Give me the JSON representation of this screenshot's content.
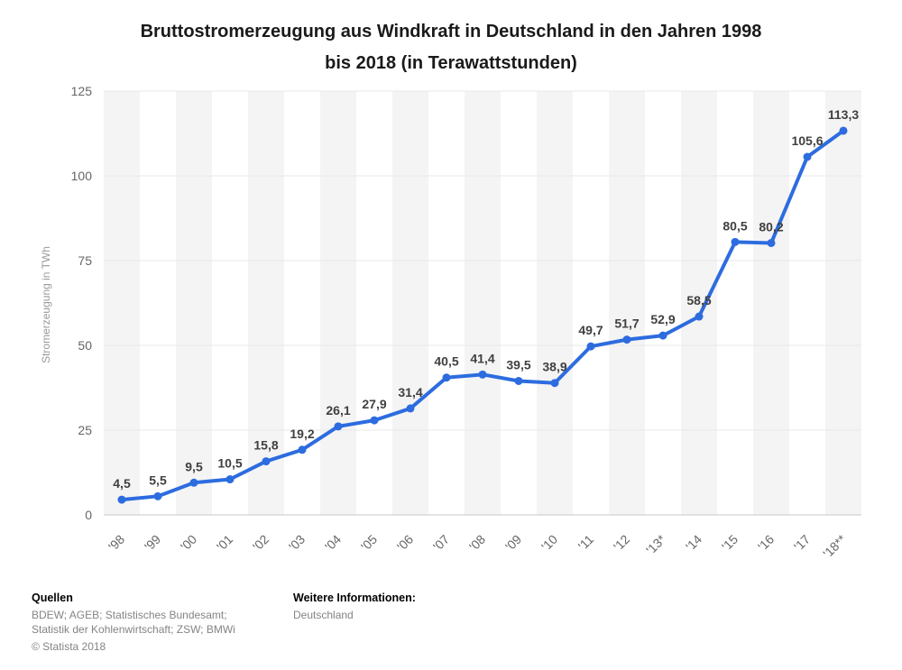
{
  "title": {
    "line1": "Bruttostromerzeugung aus Windkraft in Deutschland in den Jahren 1998",
    "line2": "bis 2018 (in Terawattstunden)"
  },
  "chart_data": {
    "type": "line",
    "title": "Bruttostromerzeugung aus Windkraft in Deutschland in den Jahren 1998 bis 2018 (in Terawattstunden)",
    "categories": [
      "'98",
      "'99",
      "'00",
      "'01",
      "'02",
      "'03",
      "'04",
      "'05",
      "'06",
      "'07",
      "'08",
      "'09",
      "'10",
      "'11",
      "'12",
      "'13*",
      "'14",
      "'15",
      "'16",
      "'17",
      "'18**"
    ],
    "values": [
      4.5,
      5.5,
      9.5,
      10.5,
      15.8,
      19.2,
      26.1,
      27.9,
      31.4,
      40.5,
      41.4,
      39.5,
      38.9,
      49.7,
      51.7,
      52.9,
      58.5,
      80.5,
      80.2,
      105.6,
      113.3
    ],
    "value_labels": [
      "4,5",
      "5,5",
      "9,5",
      "10,5",
      "15,8",
      "19,2",
      "26,1",
      "27,9",
      "31,4",
      "40,5",
      "41,4",
      "39,5",
      "38,9",
      "49,7",
      "51,7",
      "52,9",
      "58,5",
      "80,5",
      "80,2",
      "105,6",
      "113,3"
    ],
    "xlabel": "",
    "ylabel": "Stromerzeugung in TWh",
    "ylim": [
      0,
      125
    ],
    "yticks": [
      0,
      25,
      50,
      75,
      100,
      125
    ],
    "grid": true,
    "legend": "none",
    "line_color": "#2d6cdf",
    "stripe_color": "#f4f4f4",
    "grid_color": "#e8e8e8",
    "axis_color": "#c9c9c9",
    "tick_color": "#666666",
    "value_label_color": "#404040",
    "axis_title_color": "#999999"
  },
  "footer": {
    "sources_heading": "Quellen",
    "sources_line1": "BDEW; AGEB; Statistisches Bundesamt;",
    "sources_line2": "Statistik der Kohlenwirtschaft; ZSW; BMWi",
    "copyright": "© Statista 2018",
    "info_heading": "Weitere Informationen:",
    "info_value": "Deutschland"
  }
}
